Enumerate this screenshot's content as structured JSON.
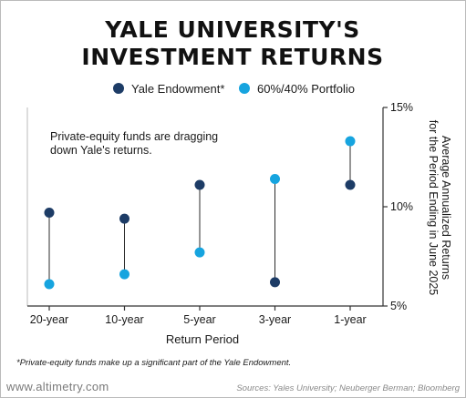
{
  "title_lines": [
    "YALE UNIVERSITY'S",
    "INVESTMENT RETURNS"
  ],
  "annotation_lines": [
    "Private-equity funds are dragging",
    "down Yale's returns."
  ],
  "footnote": "*Private-equity funds make up a significant part of the Yale Endowment.",
  "brand": "www.altimetry.com",
  "sources": "Sources: Yales University; Neuberger Berman; Bloomberg",
  "colors": {
    "yale": "#1d3c66",
    "portfolio": "#16a4df",
    "connector": "#2b2b2b",
    "axis": "#333333",
    "frame": "#bbbbbb"
  },
  "chart_data": {
    "type": "scatter",
    "xlabel": "Return Period",
    "ylabel_lines": [
      "Average Annualized Returns",
      "for the Period Ending in June 2025"
    ],
    "y_axis_side": "right",
    "ylim": [
      5,
      15
    ],
    "yticks": [
      5,
      10,
      15
    ],
    "ytick_labels": [
      "5%",
      "10%",
      "15%"
    ],
    "categories": [
      "20-year",
      "10-year",
      "5-year",
      "3-year",
      "1-year"
    ],
    "series": [
      {
        "name": "Yale Endowment*",
        "color": "#1d3c66",
        "values": [
          9.7,
          9.4,
          11.1,
          6.2,
          11.1
        ]
      },
      {
        "name": "60%/40% Portfolio",
        "color": "#16a4df",
        "values": [
          6.1,
          6.6,
          7.7,
          11.4,
          13.3
        ]
      }
    ],
    "connectors": true,
    "legend": "top-center",
    "grid": false
  }
}
